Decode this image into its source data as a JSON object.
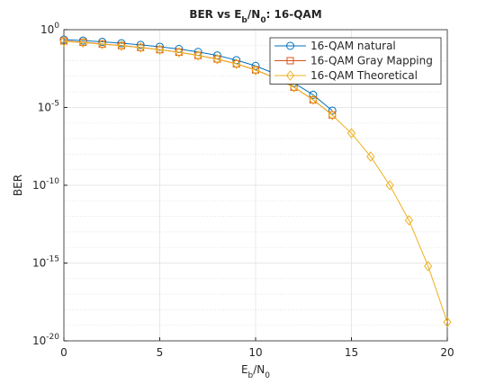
{
  "chart_data": {
    "type": "line",
    "title": [
      {
        "text": "BER vs E"
      },
      {
        "text": "b",
        "sub": true
      },
      {
        "text": "/N"
      },
      {
        "text": "0",
        "sub": true
      },
      {
        "text": ": 16-QAM"
      }
    ],
    "xlabel": [
      {
        "text": "E"
      },
      {
        "text": "b",
        "sub": true
      },
      {
        "text": "/N"
      },
      {
        "text": "0",
        "sub": true
      }
    ],
    "ylabel": "BER",
    "x": [
      0,
      1,
      2,
      3,
      4,
      5,
      6,
      7,
      8,
      9,
      10,
      11,
      12,
      13,
      14,
      15,
      16,
      17,
      18,
      19,
      20
    ],
    "xlim": [
      0,
      20
    ],
    "xticks": [
      0,
      5,
      10,
      15,
      20
    ],
    "ylim": [
      1e-20,
      1
    ],
    "yscale": "log",
    "yticks": [
      {
        "value": 1e-20,
        "label": "10",
        "exponent": "-20"
      },
      {
        "value": 1e-15,
        "label": "10",
        "exponent": "-15"
      },
      {
        "value": 1e-10,
        "label": "10",
        "exponent": "-10"
      },
      {
        "value": 1e-05,
        "label": "10",
        "exponent": "-5"
      },
      {
        "value": 1,
        "label": "10",
        "exponent": "0"
      }
    ],
    "grid": true,
    "minor_grid": true,
    "legend": "upper right",
    "series": [
      {
        "name": "16-QAM natural",
        "color": "#0072bd",
        "marker": "circle",
        "values": [
          0.23,
          0.2,
          0.165,
          0.135,
          0.105,
          0.08,
          0.057,
          0.037,
          0.022,
          0.011,
          0.0047,
          0.0015,
          0.00038,
          6.5e-05,
          6.3e-06,
          null,
          null,
          null,
          null,
          null,
          null
        ]
      },
      {
        "name": "16-QAM Gray Mapping",
        "color": "#d95319",
        "marker": "square",
        "values": [
          0.19,
          0.155,
          0.12,
          0.095,
          0.072,
          0.052,
          0.036,
          0.022,
          0.013,
          0.0064,
          0.0026,
          0.0008,
          0.0002,
          3.1e-05,
          3.3e-06,
          null,
          null,
          null,
          null,
          null,
          null
        ]
      },
      {
        "name": "16-QAM Theoretical",
        "color": "#edb120",
        "marker": "diamond",
        "values": [
          0.178,
          0.148,
          0.117,
          0.093,
          0.071,
          0.051,
          0.035,
          0.022,
          0.0126,
          0.0063,
          0.0025,
          0.00079,
          0.0002,
          3.2e-05,
          3.2e-06,
          2.2e-07,
          7e-09,
          1e-10,
          5.6e-13,
          6.3e-16,
          1.6e-19
        ]
      }
    ]
  }
}
